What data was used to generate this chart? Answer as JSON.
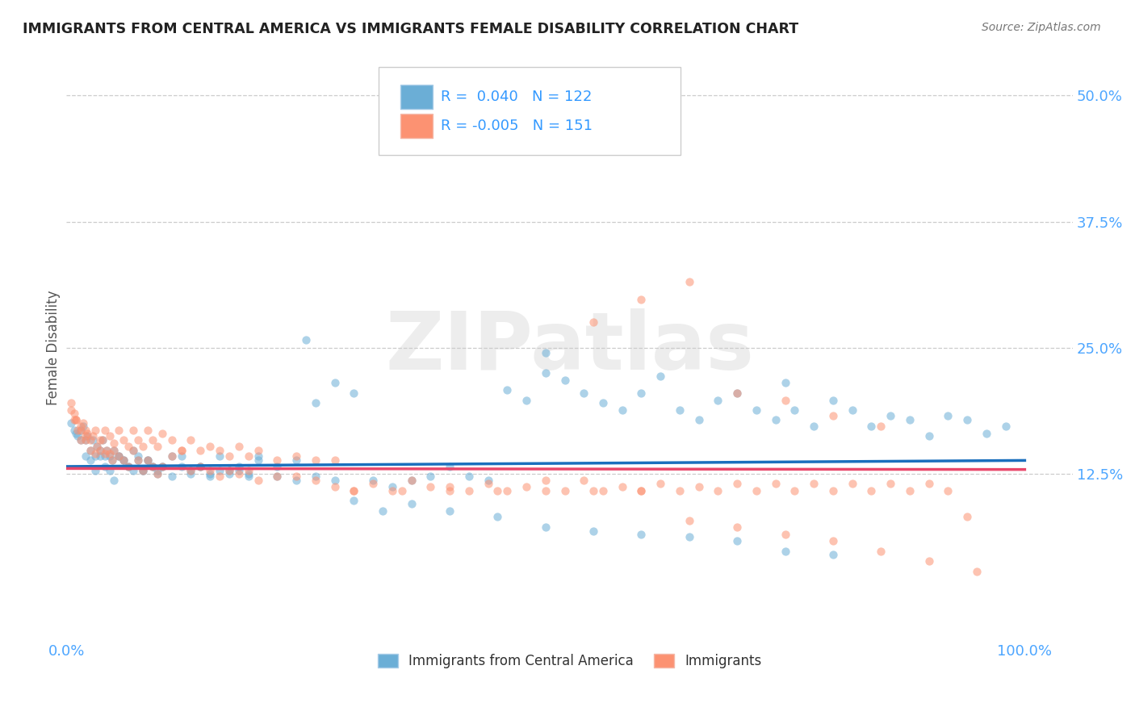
{
  "title": "IMMIGRANTS FROM CENTRAL AMERICA VS IMMIGRANTS FEMALE DISABILITY CORRELATION CHART",
  "source": "Source: ZipAtlas.com",
  "ylabel": "Female Disability",
  "series1_label": "Immigrants from Central America",
  "series2_label": "Immigrants",
  "series1_color": "#6baed6",
  "series2_color": "#fc9272",
  "series1_R": 0.04,
  "series1_N": 122,
  "series2_R": -0.005,
  "series2_N": 151,
  "legend_text_color": "#3399ff",
  "axis_label_color": "#4da6ff",
  "title_color": "#222222",
  "background_color": "#ffffff",
  "grid_color": "#cccccc",
  "watermark": "ZIPatlas",
  "xlim": [
    0.0,
    1.05
  ],
  "ylim": [
    -0.04,
    0.54
  ],
  "yticks": [
    0.125,
    0.25,
    0.375,
    0.5
  ],
  "ytick_labels": [
    "12.5%",
    "25.0%",
    "37.5%",
    "50.0%"
  ],
  "xticks": [
    0.0,
    1.0
  ],
  "xtick_labels": [
    "0.0%",
    "100.0%"
  ],
  "trendline1_x": [
    0.0,
    1.0
  ],
  "trendline1_y": [
    0.132,
    0.138
  ],
  "trendline2_x": [
    0.0,
    1.0
  ],
  "trendline2_y": [
    0.13,
    0.129
  ],
  "trendline1_color": "#1a6fbd",
  "trendline2_color": "#e8476a",
  "series1_x": [
    0.005,
    0.008,
    0.01,
    0.012,
    0.015,
    0.018,
    0.02,
    0.022,
    0.025,
    0.028,
    0.03,
    0.032,
    0.035,
    0.038,
    0.04,
    0.042,
    0.045,
    0.048,
    0.05,
    0.055,
    0.06,
    0.065,
    0.07,
    0.075,
    0.08,
    0.085,
    0.09,
    0.095,
    0.1,
    0.11,
    0.12,
    0.13,
    0.14,
    0.15,
    0.16,
    0.17,
    0.18,
    0.19,
    0.2,
    0.22,
    0.24,
    0.26,
    0.28,
    0.3,
    0.32,
    0.34,
    0.36,
    0.38,
    0.4,
    0.42,
    0.44,
    0.46,
    0.48,
    0.5,
    0.52,
    0.54,
    0.56,
    0.58,
    0.6,
    0.62,
    0.64,
    0.66,
    0.68,
    0.7,
    0.72,
    0.74,
    0.76,
    0.78,
    0.8,
    0.82,
    0.84,
    0.86,
    0.88,
    0.9,
    0.92,
    0.94,
    0.96,
    0.98,
    0.25,
    0.5,
    0.75,
    0.015,
    0.02,
    0.025,
    0.03,
    0.035,
    0.04,
    0.045,
    0.05,
    0.055,
    0.06,
    0.065,
    0.07,
    0.075,
    0.08,
    0.085,
    0.09,
    0.095,
    0.1,
    0.11,
    0.12,
    0.13,
    0.14,
    0.15,
    0.16,
    0.17,
    0.18,
    0.19,
    0.2,
    0.22,
    0.24,
    0.26,
    0.28,
    0.3,
    0.33,
    0.36,
    0.4,
    0.45,
    0.5,
    0.55,
    0.6,
    0.65,
    0.7,
    0.75,
    0.8
  ],
  "series1_y": [
    0.175,
    0.168,
    0.165,
    0.162,
    0.158,
    0.172,
    0.158,
    0.162,
    0.148,
    0.158,
    0.142,
    0.152,
    0.148,
    0.158,
    0.142,
    0.148,
    0.142,
    0.138,
    0.148,
    0.142,
    0.138,
    0.132,
    0.148,
    0.138,
    0.128,
    0.138,
    0.132,
    0.125,
    0.132,
    0.142,
    0.132,
    0.125,
    0.132,
    0.125,
    0.128,
    0.125,
    0.128,
    0.125,
    0.142,
    0.132,
    0.138,
    0.195,
    0.215,
    0.205,
    0.118,
    0.112,
    0.118,
    0.122,
    0.132,
    0.122,
    0.118,
    0.208,
    0.198,
    0.225,
    0.218,
    0.205,
    0.195,
    0.188,
    0.205,
    0.222,
    0.188,
    0.178,
    0.198,
    0.205,
    0.188,
    0.178,
    0.188,
    0.172,
    0.198,
    0.188,
    0.172,
    0.182,
    0.178,
    0.162,
    0.182,
    0.178,
    0.165,
    0.172,
    0.258,
    0.245,
    0.215,
    0.168,
    0.142,
    0.138,
    0.128,
    0.142,
    0.132,
    0.128,
    0.118,
    0.142,
    0.138,
    0.132,
    0.128,
    0.142,
    0.128,
    0.138,
    0.132,
    0.128,
    0.132,
    0.122,
    0.142,
    0.128,
    0.132,
    0.122,
    0.142,
    0.128,
    0.132,
    0.122,
    0.138,
    0.122,
    0.118,
    0.122,
    0.118,
    0.098,
    0.088,
    0.095,
    0.088,
    0.082,
    0.072,
    0.068,
    0.065,
    0.062,
    0.058,
    0.048,
    0.045
  ],
  "series2_x": [
    0.005,
    0.008,
    0.01,
    0.012,
    0.015,
    0.018,
    0.02,
    0.022,
    0.025,
    0.028,
    0.03,
    0.032,
    0.035,
    0.038,
    0.04,
    0.042,
    0.045,
    0.048,
    0.05,
    0.055,
    0.06,
    0.065,
    0.07,
    0.075,
    0.08,
    0.085,
    0.09,
    0.095,
    0.1,
    0.11,
    0.12,
    0.13,
    0.14,
    0.15,
    0.16,
    0.17,
    0.18,
    0.19,
    0.2,
    0.22,
    0.24,
    0.26,
    0.28,
    0.3,
    0.32,
    0.34,
    0.36,
    0.38,
    0.4,
    0.42,
    0.44,
    0.46,
    0.48,
    0.5,
    0.52,
    0.54,
    0.56,
    0.58,
    0.6,
    0.62,
    0.64,
    0.66,
    0.68,
    0.7,
    0.72,
    0.74,
    0.76,
    0.78,
    0.8,
    0.82,
    0.84,
    0.86,
    0.88,
    0.9,
    0.92,
    0.94,
    0.015,
    0.02,
    0.025,
    0.03,
    0.035,
    0.04,
    0.045,
    0.05,
    0.055,
    0.06,
    0.065,
    0.07,
    0.075,
    0.08,
    0.085,
    0.09,
    0.095,
    0.1,
    0.11,
    0.12,
    0.13,
    0.14,
    0.15,
    0.16,
    0.17,
    0.18,
    0.19,
    0.2,
    0.22,
    0.24,
    0.26,
    0.28,
    0.3,
    0.35,
    0.4,
    0.45,
    0.5,
    0.55,
    0.6,
    0.65,
    0.7,
    0.75,
    0.8,
    0.85,
    0.9,
    0.95,
    0.55,
    0.6,
    0.65,
    0.7,
    0.75,
    0.8,
    0.85,
    0.005,
    0.008,
    0.01,
    0.015,
    0.02
  ],
  "series2_y": [
    0.188,
    0.178,
    0.178,
    0.168,
    0.158,
    0.175,
    0.158,
    0.165,
    0.148,
    0.162,
    0.145,
    0.152,
    0.148,
    0.158,
    0.145,
    0.148,
    0.145,
    0.138,
    0.148,
    0.142,
    0.138,
    0.132,
    0.148,
    0.138,
    0.128,
    0.138,
    0.132,
    0.125,
    0.132,
    0.142,
    0.148,
    0.128,
    0.132,
    0.128,
    0.122,
    0.128,
    0.125,
    0.128,
    0.118,
    0.122,
    0.122,
    0.118,
    0.112,
    0.108,
    0.115,
    0.108,
    0.118,
    0.112,
    0.112,
    0.108,
    0.115,
    0.108,
    0.112,
    0.118,
    0.108,
    0.118,
    0.108,
    0.112,
    0.108,
    0.115,
    0.108,
    0.112,
    0.108,
    0.115,
    0.108,
    0.115,
    0.108,
    0.115,
    0.108,
    0.115,
    0.108,
    0.115,
    0.108,
    0.115,
    0.108,
    0.082,
    0.168,
    0.162,
    0.158,
    0.168,
    0.158,
    0.168,
    0.162,
    0.155,
    0.168,
    0.158,
    0.152,
    0.168,
    0.158,
    0.152,
    0.168,
    0.158,
    0.152,
    0.165,
    0.158,
    0.148,
    0.158,
    0.148,
    0.152,
    0.148,
    0.142,
    0.152,
    0.142,
    0.148,
    0.138,
    0.142,
    0.138,
    0.138,
    0.108,
    0.108,
    0.108,
    0.108,
    0.108,
    0.108,
    0.108,
    0.078,
    0.072,
    0.065,
    0.058,
    0.048,
    0.038,
    0.028,
    0.275,
    0.298,
    0.315,
    0.205,
    0.198,
    0.182,
    0.172,
    0.195,
    0.185,
    0.178,
    0.172,
    0.168
  ]
}
